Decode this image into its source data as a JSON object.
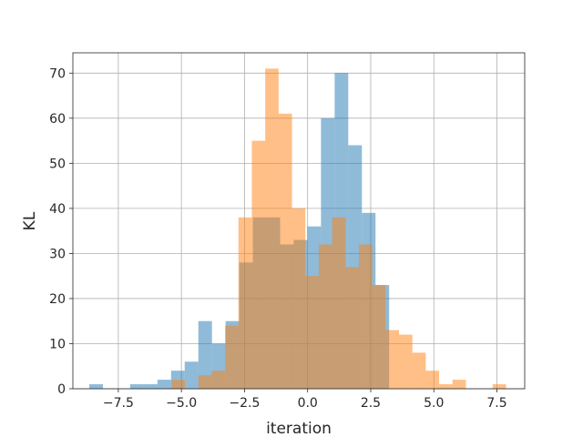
{
  "chart_data": {
    "type": "bar",
    "subtype": "overlapping-histogram",
    "title": "",
    "xlabel": "iteration",
    "ylabel": "KL",
    "xlim": [
      -9.3,
      8.6
    ],
    "ylim": [
      0,
      74.5
    ],
    "xticks": [
      -7.5,
      -5.0,
      -2.5,
      0.0,
      2.5,
      5.0,
      7.5
    ],
    "xtick_labels": [
      "−7.5",
      "−5.0",
      "−2.5",
      "0.0",
      "2.5",
      "5.0",
      "7.5"
    ],
    "yticks": [
      0,
      10,
      20,
      30,
      40,
      50,
      60,
      70
    ],
    "ytick_labels": [
      "0",
      "10",
      "20",
      "30",
      "40",
      "50",
      "60",
      "70"
    ],
    "grid": true,
    "series": [
      {
        "color": "#1f77b4",
        "opacity": 0.5,
        "bin_edges": [
          -8.65,
          -8.11,
          -7.57,
          -7.03,
          -6.49,
          -5.95,
          -5.41,
          -4.87,
          -4.33,
          -3.79,
          -3.25,
          -2.71,
          -2.17,
          -1.63,
          -1.09,
          -0.55,
          -0.01,
          0.53,
          1.07,
          1.61,
          2.15,
          2.69,
          3.23
        ],
        "counts": [
          1,
          0,
          0,
          1,
          1,
          2,
          4,
          6,
          15,
          10,
          15,
          28,
          38,
          38,
          32,
          33,
          36,
          60,
          70,
          54,
          39,
          23
        ]
      },
      {
        "color": "#ff7f0e",
        "opacity": 0.5,
        "bin_edges": [
          -5.39,
          -4.86,
          -4.33,
          -3.8,
          -3.27,
          -2.74,
          -2.21,
          -1.68,
          -1.15,
          -0.62,
          -0.09,
          0.44,
          0.97,
          1.5,
          2.03,
          2.56,
          3.09,
          3.62,
          4.15,
          4.68,
          5.21,
          5.74,
          6.27,
          6.8,
          7.33,
          7.86
        ],
        "counts": [
          2,
          0,
          3,
          4,
          14,
          38,
          55,
          71,
          61,
          40,
          25,
          32,
          38,
          27,
          32,
          23,
          13,
          12,
          8,
          4,
          1,
          2,
          0,
          0,
          1
        ]
      }
    ]
  }
}
